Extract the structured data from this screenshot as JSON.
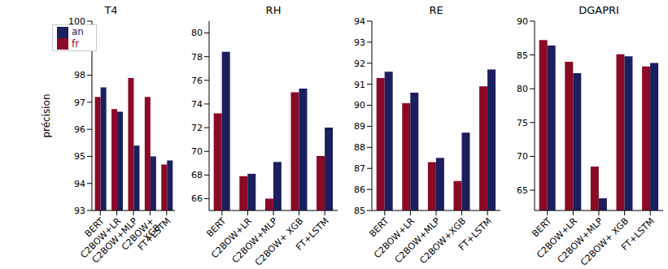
{
  "chart_data": [
    {
      "type": "bar",
      "title": "T4",
      "ylabel": "précision",
      "legend": "upper left",
      "categories": [
        "BERT",
        "C2BOW+LR",
        "C2BOW+MLP",
        "C2BOW+ XGB",
        "FT+LSTM"
      ],
      "series": [
        {
          "name": "fr",
          "color": "#8b0a26",
          "values": [
            97.2,
            96.75,
            97.9,
            97.2,
            94.7
          ]
        },
        {
          "name": "an",
          "color": "#1c1f5e",
          "values": [
            97.55,
            96.65,
            95.4,
            95.0,
            94.85
          ]
        }
      ],
      "ylim": [
        93,
        100
      ],
      "yticks": [
        93,
        94,
        95,
        96,
        97,
        98,
        99,
        100
      ]
    },
    {
      "type": "bar",
      "title": "RH",
      "categories": [
        "BERT",
        "C2BOW+LR",
        "C2BOW+MLP",
        "C2BOW+ XGB",
        "FT+LSTM"
      ],
      "series": [
        {
          "name": "fr",
          "color": "#8b0a26",
          "values": [
            73.2,
            67.9,
            66.0,
            75.0,
            69.6
          ]
        },
        {
          "name": "an",
          "color": "#1c1f5e",
          "values": [
            78.4,
            68.1,
            69.1,
            75.3,
            72.0
          ]
        }
      ],
      "ylim": [
        65,
        81
      ],
      "yticks": [
        66,
        68,
        70,
        72,
        74,
        76,
        78,
        80
      ]
    },
    {
      "type": "bar",
      "title": "RE",
      "categories": [
        "BERT",
        "C2BOW+LR",
        "C2BOW+MLP",
        "C2BOW+XGB",
        "FT+LSTM"
      ],
      "series": [
        {
          "name": "fr",
          "color": "#8b0a26",
          "values": [
            91.3,
            90.1,
            87.3,
            86.4,
            90.9
          ]
        },
        {
          "name": "an",
          "color": "#1c1f5e",
          "values": [
            91.6,
            90.6,
            87.5,
            88.7,
            91.7
          ]
        }
      ],
      "ylim": [
        85,
        94
      ],
      "yticks": [
        85,
        86,
        87,
        88,
        89,
        90,
        91,
        92,
        93,
        94
      ]
    },
    {
      "type": "bar",
      "title": "DGAPRI",
      "categories": [
        "BERT",
        "C2BOW+LR",
        "C2BOW+MLP",
        "C2BOW+ XGB",
        "FT+LSTM"
      ],
      "series": [
        {
          "name": "fr",
          "color": "#8b0a26",
          "values": [
            87.2,
            84.0,
            68.5,
            85.1,
            83.3
          ]
        },
        {
          "name": "an",
          "color": "#1c1f5e",
          "values": [
            86.4,
            82.3,
            63.8,
            84.8,
            83.8
          ]
        }
      ],
      "ylim": [
        62,
        90
      ],
      "yticks": [
        65,
        70,
        75,
        80,
        85,
        90
      ]
    }
  ]
}
